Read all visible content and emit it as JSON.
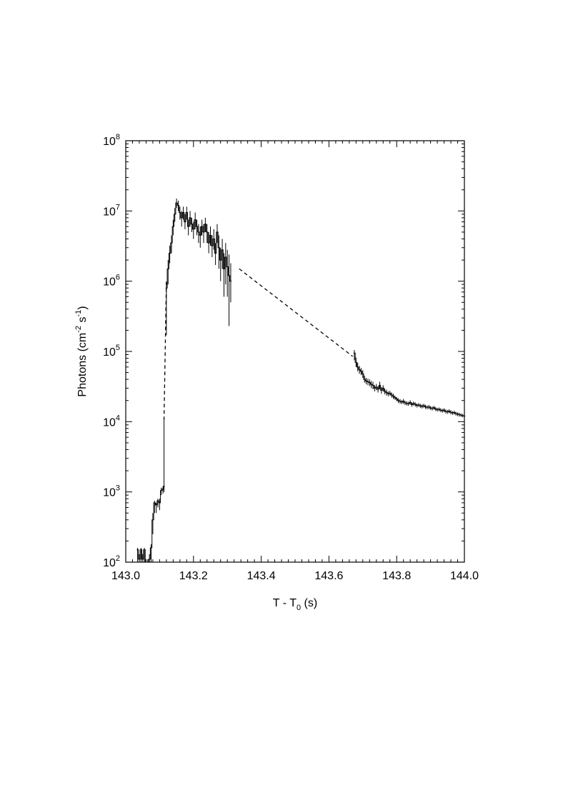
{
  "chart_data": {
    "type": "line",
    "title": "",
    "xlabel": {
      "main": "T - T",
      "sub": "0",
      "unit": " (s)"
    },
    "ylabel": {
      "main": "Photons (cm",
      "sup1": "-2",
      "mid": " s",
      "sup2": "-1",
      "end": ")"
    },
    "x_scale": "linear",
    "y_scale": "log",
    "xlim": [
      143.0,
      144.0
    ],
    "ylim": [
      100,
      100000000
    ],
    "x_ticks": [
      "143.0",
      "143.2",
      "143.4",
      "143.6",
      "143.8",
      "144.0"
    ],
    "y_ticks": [
      {
        "base": "10",
        "exp": "2"
      },
      {
        "base": "10",
        "exp": "3"
      },
      {
        "base": "10",
        "exp": "4"
      },
      {
        "base": "10",
        "exp": "5"
      },
      {
        "base": "10",
        "exp": "6"
      },
      {
        "base": "10",
        "exp": "7"
      },
      {
        "base": "10",
        "exp": "8"
      }
    ],
    "grid": false,
    "series": [
      {
        "style": "step",
        "segment": "precursor",
        "x": [
          143.035,
          143.04,
          143.045,
          143.05,
          143.055,
          143.06,
          143.065,
          143.07,
          143.075,
          143.08,
          143.085,
          143.09,
          143.095,
          143.1,
          143.105,
          143.11,
          143.113
        ],
        "y": [
          150,
          110,
          150,
          110,
          150,
          100,
          100,
          110,
          160,
          400,
          700,
          650,
          750,
          700,
          1050,
          1100,
          1200
        ],
        "err_low": [
          100,
          100,
          100,
          100,
          100,
          100,
          100,
          100,
          100,
          250,
          500,
          500,
          600,
          550,
          900,
          950,
          1000
        ],
        "err_high": [
          160,
          130,
          160,
          130,
          160,
          110,
          110,
          130,
          180,
          500,
          750,
          700,
          800,
          800,
          1150,
          1200,
          10500
        ]
      },
      {
        "style": "step",
        "segment": "main-peak",
        "x": [
          143.12,
          143.125,
          143.13,
          143.135,
          143.14,
          143.145,
          143.15,
          143.155,
          143.16,
          143.165,
          143.17,
          143.175,
          143.18,
          143.185,
          143.19,
          143.195,
          143.2,
          143.205,
          143.21,
          143.215,
          143.22,
          143.225,
          143.23,
          143.235,
          143.24,
          143.245,
          143.25,
          143.255,
          143.26,
          143.265,
          143.27,
          143.275,
          143.28,
          143.285,
          143.29,
          143.295,
          143.3,
          143.305,
          143.31
        ],
        "y": [
          800000,
          1500000,
          2500000,
          3500000,
          6000000,
          9000000,
          13000000,
          12000000,
          9500000,
          8000000,
          9500000,
          7000000,
          9500000,
          6000000,
          8000000,
          6500000,
          5500000,
          7500000,
          6000000,
          5000000,
          4500000,
          6000000,
          5000000,
          6500000,
          5000000,
          3500000,
          4500000,
          3200000,
          4000000,
          2500000,
          5000000,
          3000000,
          2000000,
          2800000,
          1500000,
          2200000,
          1600000,
          1200000,
          1000000
        ],
        "err_low": [
          170000,
          900000,
          1800000,
          2500000,
          4500000,
          7000000,
          11000000,
          10000000,
          7500000,
          6000000,
          7500000,
          5500000,
          7500000,
          4500000,
          6000000,
          5000000,
          4000000,
          5500000,
          4500000,
          3500000,
          3000000,
          4500000,
          3500000,
          5000000,
          3500000,
          2500000,
          3200000,
          2200000,
          2800000,
          1700000,
          3500000,
          1500000,
          1000000,
          1500000,
          600000,
          900000,
          600000,
          230000,
          500000
        ],
        "err_high": [
          950000,
          2000000,
          3200000,
          4500000,
          7500000,
          11000000,
          15000000,
          14000000,
          11500000,
          10000000,
          11500000,
          9000000,
          11500000,
          7500000,
          10000000,
          8000000,
          7000000,
          9500000,
          7500000,
          6500000,
          6000000,
          7500000,
          6500000,
          8000000,
          6500000,
          5000000,
          6000000,
          4500000,
          5500000,
          3500000,
          6500000,
          4500000,
          3000000,
          4000000,
          2500000,
          3500000,
          2800000,
          2400000,
          1800000
        ]
      },
      {
        "style": "step",
        "segment": "tail",
        "x": [
          143.675,
          143.68,
          143.685,
          143.69,
          143.695,
          143.7,
          143.705,
          143.71,
          143.715,
          143.72,
          143.725,
          143.73,
          143.735,
          143.74,
          143.745,
          143.75,
          143.755,
          143.76,
          143.765,
          143.77,
          143.775,
          143.78,
          143.785,
          143.79,
          143.795,
          143.8,
          143.805,
          143.81,
          143.815,
          143.82,
          143.825,
          143.83,
          143.835,
          143.84,
          143.845,
          143.85,
          143.855,
          143.86,
          143.865,
          143.87,
          143.875,
          143.88,
          143.885,
          143.89,
          143.895,
          143.9,
          143.905,
          143.91,
          143.915,
          143.92,
          143.925,
          143.93,
          143.935,
          143.94,
          143.945,
          143.95,
          143.955,
          143.96,
          143.965,
          143.97,
          143.975,
          143.98,
          143.985,
          143.99,
          143.995,
          144.0
        ],
        "y": [
          95000,
          70000,
          60000,
          55000,
          52000,
          48000,
          40000,
          38000,
          37000,
          36000,
          34000,
          33000,
          30000,
          31000,
          29000,
          33000,
          28000,
          30000,
          27000,
          26000,
          25000,
          25500,
          24000,
          23000,
          22000,
          21000,
          20000,
          19500,
          19000,
          19500,
          18500,
          18200,
          18000,
          18800,
          17500,
          18200,
          17600,
          17000,
          17300,
          16800,
          16500,
          16900,
          16300,
          16000,
          16200,
          15700,
          15400,
          15800,
          15200,
          14800,
          15000,
          14600,
          14300,
          14600,
          14000,
          13800,
          14100,
          13600,
          13300,
          13500,
          13000,
          12800,
          12600,
          12400,
          12200,
          12000
        ],
        "err_low": [
          75000,
          60000,
          52000,
          48000,
          46000,
          42000,
          36000,
          34000,
          33000,
          32000,
          30000,
          29000,
          27000,
          28000,
          26000,
          29000,
          25000,
          27000,
          24500,
          23500,
          23000,
          23500,
          22000,
          21000,
          20500,
          19500,
          18500,
          18000,
          17800,
          18000,
          17200,
          17000,
          16800,
          17500,
          16300,
          17000,
          16400,
          15900,
          16200,
          15700,
          15400,
          15800,
          15200,
          15000,
          15100,
          14700,
          14400,
          14800,
          14200,
          13900,
          14100,
          13700,
          13400,
          13700,
          13100,
          12900,
          13200,
          12700,
          12500,
          12700,
          12200,
          12000,
          11800,
          11700,
          11500,
          11300
        ],
        "err_high": [
          105000,
          82000,
          69000,
          62000,
          58000,
          54000,
          45000,
          42000,
          41000,
          40000,
          38000,
          37000,
          33000,
          34500,
          32000,
          37000,
          31000,
          33000,
          29500,
          28500,
          27000,
          27500,
          26000,
          25000,
          23500,
          22500,
          21500,
          21000,
          20200,
          21000,
          19800,
          19500,
          19200,
          20100,
          18700,
          19400,
          18800,
          18100,
          18400,
          17900,
          17600,
          18000,
          17400,
          17000,
          17300,
          16700,
          16400,
          16800,
          16200,
          15700,
          15900,
          15500,
          15200,
          15500,
          14900,
          14700,
          15000,
          14500,
          14100,
          14300,
          13800,
          13600,
          13400,
          13100,
          12900,
          12700
        ]
      },
      {
        "style": "dashed",
        "segment": "rise-gap",
        "x": [
          143.113,
          143.12
        ],
        "y": [
          10500,
          1000000
        ]
      },
      {
        "style": "dashed",
        "segment": "decay-gap",
        "x": [
          143.335,
          143.67
        ],
        "y": [
          1500000,
          85000
        ]
      }
    ]
  }
}
